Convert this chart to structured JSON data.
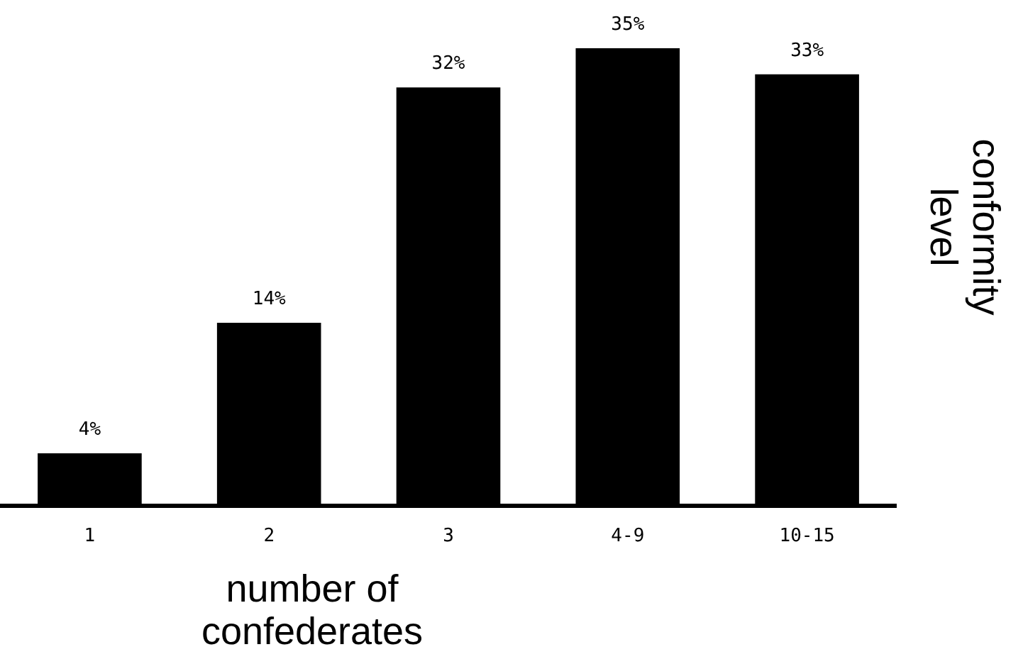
{
  "chart_data": {
    "type": "bar",
    "xlabel": "number of\nconfederates",
    "ylabel": "conformity\nlevel",
    "categories": [
      "1",
      "2",
      "3",
      "4-9",
      "10-15"
    ],
    "values": [
      4,
      14,
      32,
      35,
      33
    ],
    "value_labels": [
      "4%",
      "14%",
      "32%",
      "35%",
      "33%"
    ],
    "color": "#000000",
    "grid": false,
    "legend": false,
    "tick_labels": "x"
  }
}
